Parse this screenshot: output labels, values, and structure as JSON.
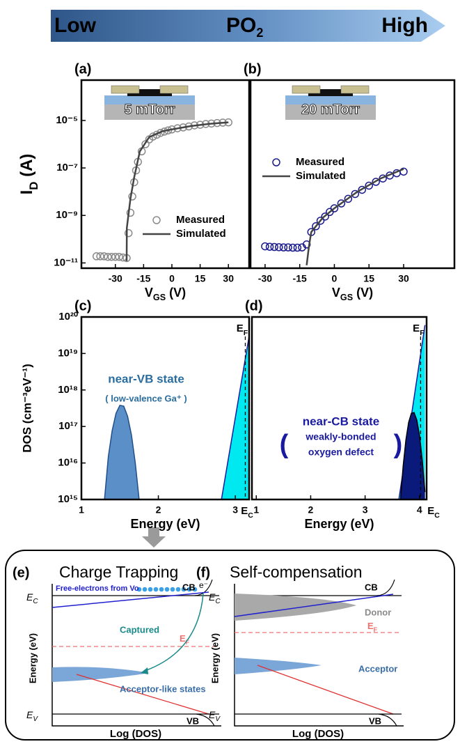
{
  "header": {
    "low": "Low",
    "mid": {
      "main": "PO",
      "sub": "2"
    },
    "high": "High"
  },
  "chart_data": [
    {
      "type": "line",
      "label": "(a)",
      "inset": "5 mTorr",
      "yscale": "log",
      "ylabel": {
        "main": "I",
        "sub": "D",
        "rest": " (A)"
      },
      "xlabel": {
        "main": "V",
        "sub": "GS",
        "rest": " (V)"
      },
      "xlim": [
        -48,
        41
      ],
      "xticks": [
        -30,
        -15,
        0,
        15,
        30
      ],
      "ylim": [
        6e-12,
        0.0005
      ],
      "yticks": [
        {
          "value": 1e-05,
          "label": "10⁻⁵"
        },
        {
          "value": 1e-07,
          "label": "10⁻⁷"
        },
        {
          "value": 1e-09,
          "label": "10⁻⁹"
        },
        {
          "value": 1e-11,
          "label": "10⁻¹¹"
        }
      ],
      "legend": "lower right",
      "series": [
        {
          "name": "Measured",
          "color": "#8a8a8a",
          "marker": "circle",
          "x": [
            -40,
            -38,
            -36,
            -34,
            -32,
            -30,
            -28,
            -26,
            -24,
            -23,
            -22,
            -21,
            -20,
            -19,
            -18,
            -16,
            -14,
            -12,
            -10,
            -8,
            -6,
            -4,
            -2,
            0,
            3,
            6,
            9,
            12,
            15,
            18,
            21,
            24,
            27,
            30
          ],
          "values": [
            1.9e-11,
            1.9e-11,
            1.9e-11,
            1.8e-11,
            1.8e-11,
            1.8e-11,
            1.8e-11,
            1.7e-11,
            1.6e-11,
            1.8e-10,
            1.3e-09,
            6.3e-09,
            2.5e-08,
            7.9e-08,
            1.8e-07,
            5e-07,
            1e-06,
            1.6e-06,
            2.1e-06,
            2.5e-06,
            3e-06,
            3.4e-06,
            3.8e-06,
            4.2e-06,
            4.7e-06,
            5.1e-06,
            5.6e-06,
            6.2e-06,
            6.6e-06,
            7.1e-06,
            7.4e-06,
            7.8e-06,
            8.1e-06,
            8.3e-06
          ]
        },
        {
          "name": "Simulated",
          "color": "#444444",
          "x": [
            -24,
            -23.9,
            -22,
            -20,
            -17,
            -12,
            -5,
            0,
            10,
            20,
            30
          ],
          "values": [
            1.2e-11,
            3e-10,
            5e-09,
            4e-08,
            5e-07,
            2e-06,
            3.5e-06,
            4.2e-06,
            5.8e-06,
            7.2e-06,
            8.3e-06
          ]
        }
      ]
    },
    {
      "type": "line",
      "label": "(b)",
      "inset": "20 mTorr",
      "yscale": "log",
      "xlabel": {
        "main": "V",
        "sub": "GS",
        "rest": " (V)"
      },
      "xlim": [
        -36.3,
        52
      ],
      "xticks": [
        -30,
        -15,
        0,
        15,
        30
      ],
      "ylim": [
        6e-12,
        0.0005
      ],
      "legend": "upper left",
      "series": [
        {
          "name": "Measured",
          "color": "#1a1a8c",
          "marker": "circle",
          "x": [
            -30,
            -28,
            -26,
            -24,
            -22,
            -20,
            -18,
            -16,
            -14,
            -12,
            -10,
            -8,
            -6,
            -4,
            -2,
            0,
            3,
            6,
            9,
            12,
            15,
            18,
            21,
            24,
            27,
            30
          ],
          "values": [
            5e-11,
            4.8e-11,
            4.7e-11,
            4.6e-11,
            4.5e-11,
            4.5e-11,
            4.4e-11,
            4.4e-11,
            4.5e-11,
            6e-11,
            2e-10,
            3.5e-10,
            6e-10,
            9e-10,
            1.4e-09,
            2e-09,
            3.2e-09,
            5e-09,
            8e-09,
            1.2e-08,
            1.8e-08,
            2.6e-08,
            3.6e-08,
            4.8e-08,
            6e-08,
            7e-08
          ]
        },
        {
          "name": "Simulated",
          "color": "#444444",
          "x": [
            -12,
            -11,
            -10,
            -5,
            0,
            10,
            20,
            30
          ],
          "values": [
            8e-12,
            5e-11,
            2e-10,
            8e-10,
            2e-09,
            1e-08,
            3.6e-08,
            9e-08
          ]
        }
      ]
    },
    {
      "type": "area",
      "label": "(c)",
      "yscale": "log",
      "ylabel": "DOS (cm⁻³eV⁻¹)",
      "xlabel": "Energy (eV)",
      "xlim": [
        1,
        3.18
      ],
      "xticks": [
        1,
        2,
        3
      ],
      "ylim": [
        1000000000000000.0,
        1e+20
      ],
      "yticks": [
        {
          "value": 1e+20,
          "label": "10²⁰"
        },
        {
          "value": 1e+19,
          "label": "10¹⁹"
        },
        {
          "value": 1e+18,
          "label": "10¹⁸"
        },
        {
          "value": 1e+17,
          "label": "10¹⁷"
        },
        {
          "value": 1e+16,
          "label": "10¹⁶"
        },
        {
          "value": 1000000000000000.0,
          "label": "10¹⁵"
        }
      ],
      "ef": 3.13,
      "ef_label": {
        "main": "E",
        "sub": "Fi"
      },
      "ec_label": {
        "main": "E",
        "sub": "C"
      },
      "annotations": [
        "near-VB state",
        "( low-valence Ga⁺ )"
      ],
      "series": [
        {
          "color": "#1a1aa0",
          "fill": "#00e8f0",
          "x": [
            2.82,
            3.18
          ],
          "values": [
            1000000000000000.0,
            3e+19
          ]
        },
        {
          "color": "#1f4e8a",
          "fill": "#5b8fc7",
          "x": [
            1.3,
            1.35,
            1.4,
            1.45,
            1.5,
            1.55,
            1.6,
            1.65,
            1.7,
            1.75
          ],
          "values": [
            1000000000000000.0,
            1.5e+16,
            7.8e+16,
            2.3e+17,
            3.8e+17,
            3.6e+17,
            1.9e+17,
            5.9e+16,
            1e+16,
            1000000000000000.0
          ]
        }
      ]
    },
    {
      "type": "area",
      "label": "(d)",
      "yscale": "log",
      "xlabel": "Energy (eV)",
      "xlim": [
        0.92,
        4.13
      ],
      "xticks": [
        1,
        2,
        3,
        4
      ],
      "ylim": [
        1000000000000000.0,
        1e+20
      ],
      "ef": 4.02,
      "ef_label": {
        "main": "E",
        "sub": "F"
      },
      "ec_label": {
        "main": "E",
        "sub": "C"
      },
      "annotations": [
        "near-CB state",
        "(",
        "weakly-bonded",
        "oxygen defect",
        ")"
      ],
      "series": [
        {
          "color": "#1a1aa0",
          "fill": "#00e8f0",
          "x": [
            3.62,
            4.1
          ],
          "values": [
            1000000000000000.0,
            6e+19
          ]
        },
        {
          "color": "#000000",
          "fill": "#0a1a7a",
          "x": [
            3.65,
            3.7,
            3.75,
            3.8,
            3.85,
            3.9,
            3.95,
            4.0,
            4.05,
            4.1
          ],
          "values": [
            1000000000000000.0,
            8500000000000000.0,
            4.3e+16,
            1.3e+17,
            2.3e+17,
            2.4e+17,
            1.5e+17,
            5.6e+16,
            1.2e+16,
            1600000000000000.0
          ]
        }
      ]
    }
  ],
  "diagrams": [
    {
      "label": "(e)",
      "title": "Charge Trapping",
      "free_electrons": "Free-electrons from Vo",
      "electron": "e⁻",
      "cb": "CB",
      "vb": "VB",
      "ec": {
        "main": "E",
        "sub": "C"
      },
      "ev": {
        "main": "E",
        "sub": "V"
      },
      "ef": {
        "main": "E",
        "sub": "F"
      },
      "captured": "Captured",
      "states": "Acceptor-like states",
      "ylabel": "Energy (eV)",
      "xlabel": "Log (DOS)"
    },
    {
      "label": "(f)",
      "title": "Self-compensation",
      "cb": "CB",
      "vb": "VB",
      "ec": {
        "main": "E",
        "sub": "C"
      },
      "ev": {
        "main": "E",
        "sub": "V"
      },
      "ef": {
        "main": "E",
        "sub": "F"
      },
      "donor": "Donor",
      "acceptor": "Acceptor",
      "ylabel": "Energy (eV)",
      "xlabel": "Log (DOS)"
    }
  ]
}
